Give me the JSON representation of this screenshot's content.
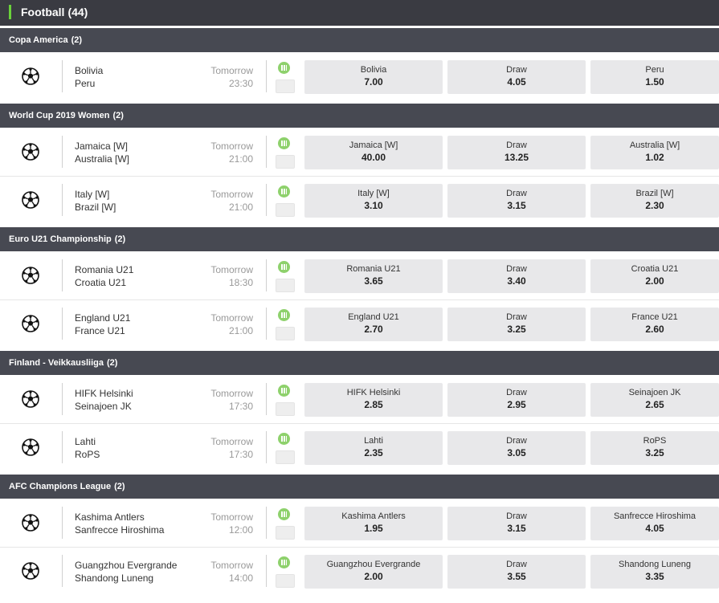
{
  "header": {
    "title": "Football",
    "count": "(44)"
  },
  "leagues": [
    {
      "name": "Copa America",
      "count": "(2)",
      "matches": [
        {
          "home": "Bolivia",
          "away": "Peru",
          "day": "Tomorrow",
          "time": "23:30",
          "o1_label": "Bolivia",
          "o1": "7.00",
          "x_label": "Draw",
          "x": "4.05",
          "o2_label": "Peru",
          "o2": "1.50"
        }
      ]
    },
    {
      "name": "World Cup 2019 Women",
      "count": "(2)",
      "matches": [
        {
          "home": "Jamaica [W]",
          "away": "Australia [W]",
          "day": "Tomorrow",
          "time": "21:00",
          "o1_label": "Jamaica [W]",
          "o1": "40.00",
          "x_label": "Draw",
          "x": "13.25",
          "o2_label": "Australia [W]",
          "o2": "1.02"
        },
        {
          "home": "Italy [W]",
          "away": "Brazil [W]",
          "day": "Tomorrow",
          "time": "21:00",
          "o1_label": "Italy [W]",
          "o1": "3.10",
          "x_label": "Draw",
          "x": "3.15",
          "o2_label": "Brazil [W]",
          "o2": "2.30"
        }
      ]
    },
    {
      "name": "Euro U21 Championship",
      "count": "(2)",
      "matches": [
        {
          "home": "Romania U21",
          "away": "Croatia U21",
          "day": "Tomorrow",
          "time": "18:30",
          "o1_label": "Romania U21",
          "o1": "3.65",
          "x_label": "Draw",
          "x": "3.40",
          "o2_label": "Croatia U21",
          "o2": "2.00"
        },
        {
          "home": "England U21",
          "away": "France U21",
          "day": "Tomorrow",
          "time": "21:00",
          "o1_label": "England U21",
          "o1": "2.70",
          "x_label": "Draw",
          "x": "3.25",
          "o2_label": "France U21",
          "o2": "2.60"
        }
      ]
    },
    {
      "name": "Finland - Veikkausliiga",
      "count": "(2)",
      "matches": [
        {
          "home": "HIFK Helsinki",
          "away": "Seinajoen JK",
          "day": "Tomorrow",
          "time": "17:30",
          "o1_label": "HIFK Helsinki",
          "o1": "2.85",
          "x_label": "Draw",
          "x": "2.95",
          "o2_label": "Seinajoen JK",
          "o2": "2.65"
        },
        {
          "home": "Lahti",
          "away": "RoPS",
          "day": "Tomorrow",
          "time": "17:30",
          "o1_label": "Lahti",
          "o1": "2.35",
          "x_label": "Draw",
          "x": "3.05",
          "o2_label": "RoPS",
          "o2": "3.25"
        }
      ]
    },
    {
      "name": "AFC Champions League",
      "count": "(2)",
      "matches": [
        {
          "home": "Kashima Antlers",
          "away": "Sanfrecce Hiroshima",
          "day": "Tomorrow",
          "time": "12:00",
          "o1_label": "Kashima Antlers",
          "o1": "1.95",
          "x_label": "Draw",
          "x": "3.15",
          "o2_label": "Sanfrecce Hiroshima",
          "o2": "4.05"
        },
        {
          "home": "Guangzhou Evergrande",
          "away": "Shandong Luneng",
          "day": "Tomorrow",
          "time": "14:00",
          "o1_label": "Guangzhou Evergrande",
          "o1": "2.00",
          "x_label": "Draw",
          "x": "3.55",
          "o2_label": "Shandong Luneng",
          "o2": "3.35"
        }
      ]
    }
  ]
}
